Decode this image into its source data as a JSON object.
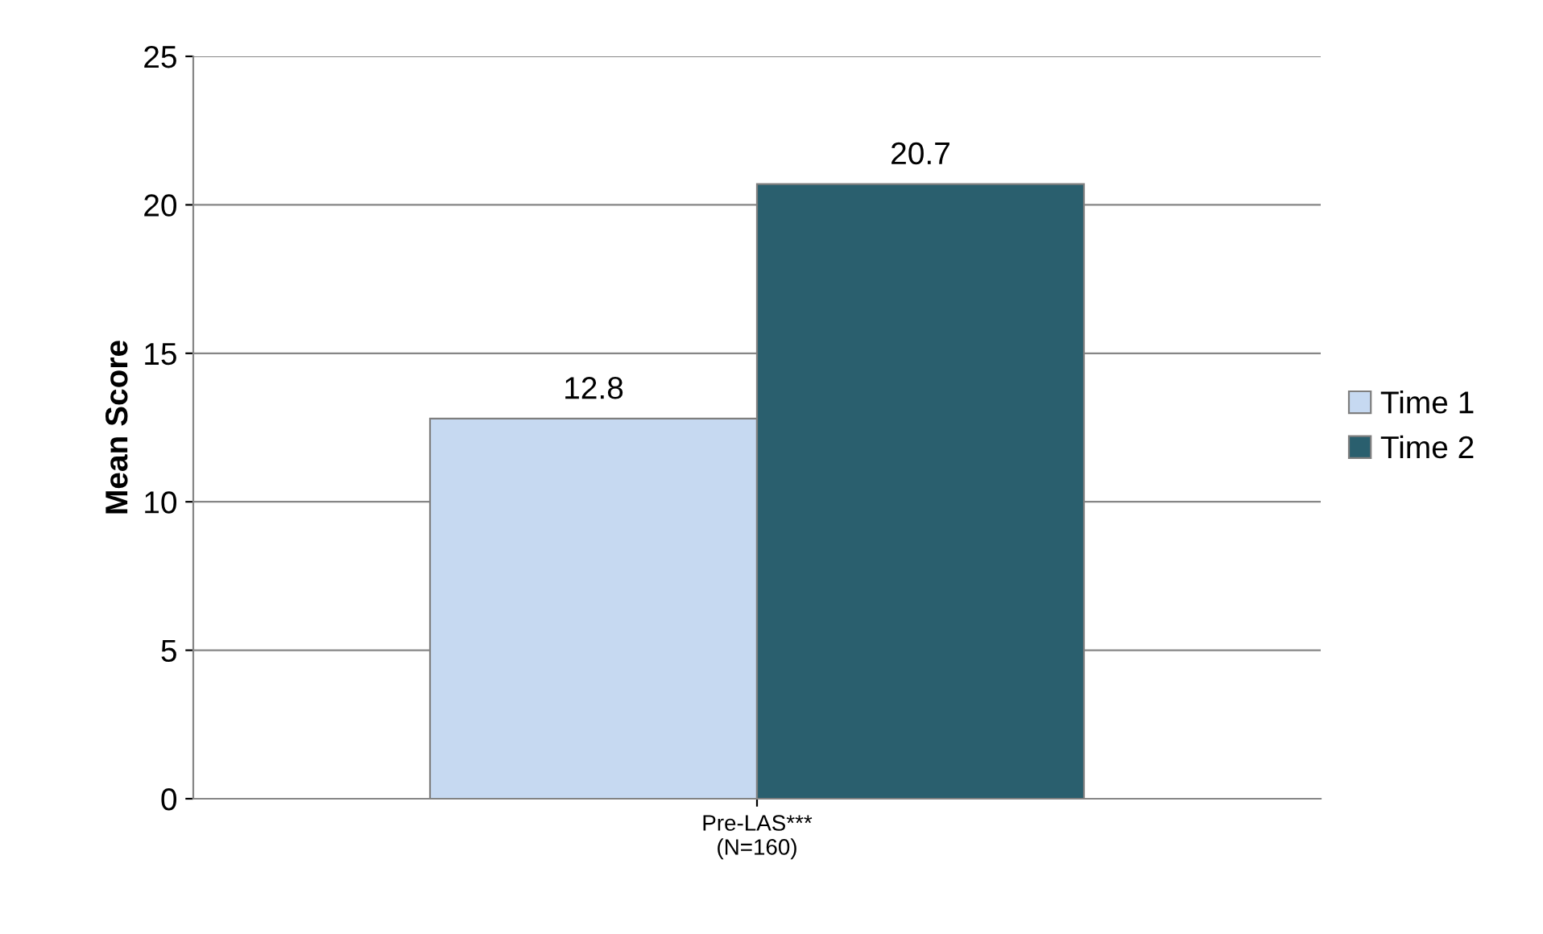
{
  "chart_data": {
    "type": "bar",
    "ylabel": "Mean Score",
    "categories": [
      "Pre-LAS***\n(N=160)"
    ],
    "series": [
      {
        "name": "Time 1",
        "color": "#c6d9f1",
        "values": [
          12.8
        ]
      },
      {
        "name": "Time 2",
        "color": "#2a5f6e",
        "values": [
          20.7
        ]
      }
    ],
    "ylim": [
      0,
      25
    ],
    "yticks": [
      0,
      5,
      10,
      15,
      20,
      25
    ],
    "grid": "y",
    "legend": "right",
    "data_labels": true
  }
}
